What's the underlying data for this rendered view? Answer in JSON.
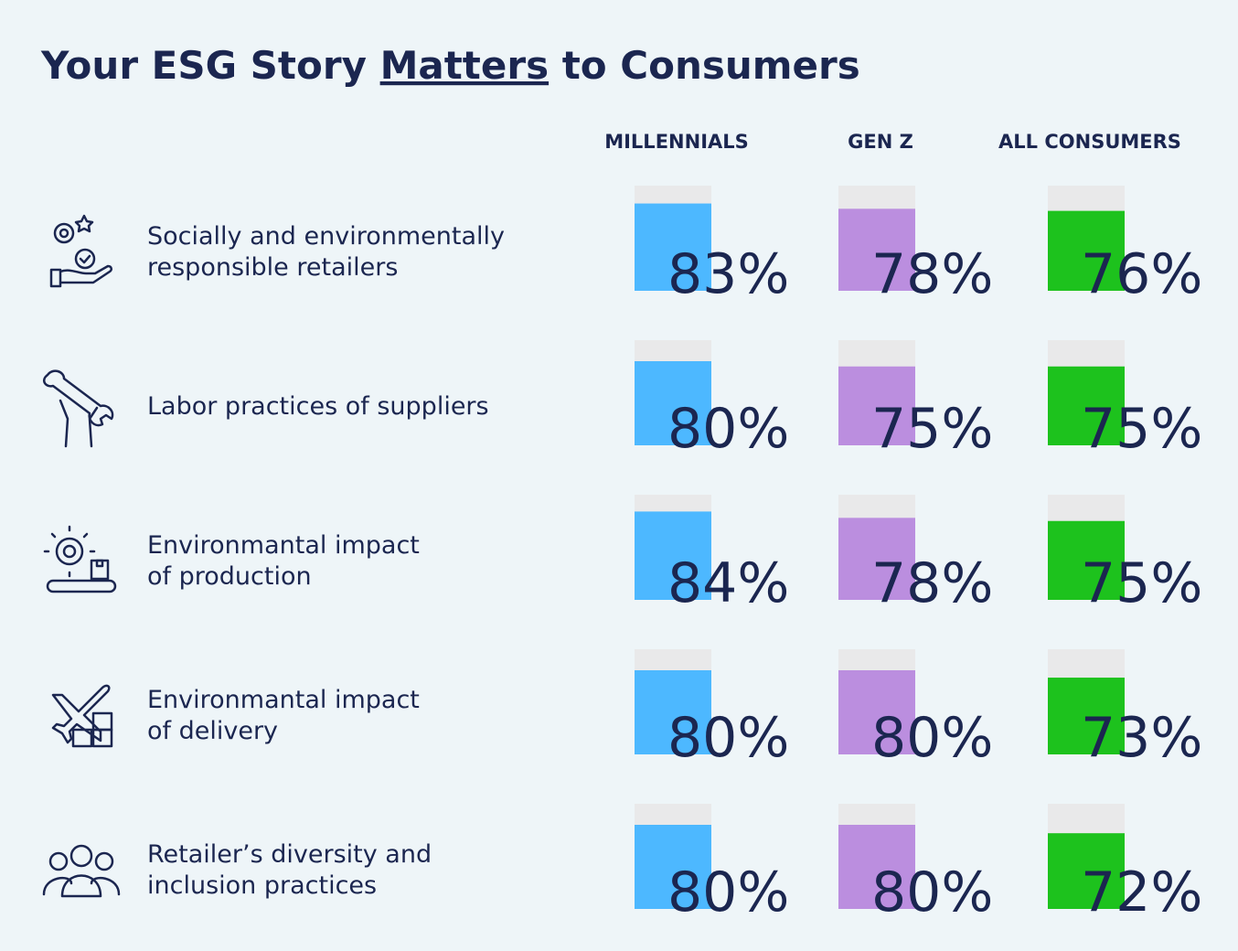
{
  "chart_data": {
    "type": "bar",
    "title": [
      "Your ESG Story",
      "Matters",
      "to Consumers"
    ],
    "categories": [
      [
        "Socially and environmentally",
        "responsible retailers"
      ],
      [
        "Labor practices of suppliers"
      ],
      [
        "Environmantal impact",
        "of production"
      ],
      [
        "Environmantal impact",
        "of delivery"
      ],
      [
        "Retailer’s diversity and",
        "inclusion practices"
      ]
    ],
    "series": [
      {
        "name": "MILLENNIALS",
        "color": "#4db8ff",
        "values": [
          83,
          80,
          84,
          80,
          80
        ],
        "value_labels": [
          "83%",
          "80%",
          "84%",
          "80%",
          "80%"
        ]
      },
      {
        "name": "GEN Z",
        "color": "#bb8edf",
        "values": [
          78,
          75,
          78,
          80,
          80
        ],
        "value_labels": [
          "78%",
          "75%",
          "78%",
          "80%",
          "80%"
        ]
      },
      {
        "name": "ALL CONSUMERS",
        "color": "#1dc21d",
        "values": [
          76,
          75,
          75,
          73,
          72
        ],
        "value_labels": [
          "76%",
          "75%",
          "75%",
          "73%",
          "72%"
        ]
      }
    ],
    "ylim": [
      0,
      100
    ]
  }
}
